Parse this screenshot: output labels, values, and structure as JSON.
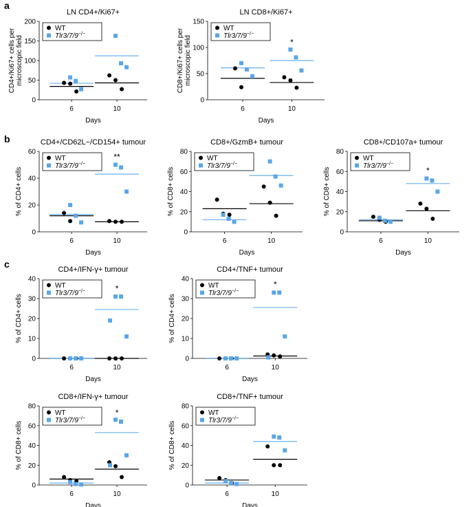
{
  "figure": {
    "panel_labels": [
      "a",
      "b",
      "c"
    ],
    "legend": {
      "wt": "WT",
      "ko": "Tlr3/7/9",
      "ko_sup": "−/−"
    },
    "colors": {
      "wt": "#000000",
      "ko": "#5aa6e8",
      "ko_mean": "#6ab0ef",
      "axis": "#000000"
    }
  },
  "chart_data": [
    {
      "id": "a1",
      "type": "scatter",
      "title": "LN CD4+/Ki67+",
      "ylabel": "CD4+/Ki67+ cells per microscopic field",
      "xlabel": "Days",
      "categories": [
        "6",
        "10"
      ],
      "ylim": [
        0,
        200
      ],
      "yticks": [
        0,
        50,
        100,
        150,
        200
      ],
      "series": [
        {
          "name": "WT",
          "points": [
            [
              0,
              43
            ],
            [
              0,
              41
            ],
            [
              0,
              21
            ],
            [
              1,
              62
            ],
            [
              1,
              50
            ],
            [
              1,
              27
            ]
          ],
          "means": [
            34,
            43
          ]
        },
        {
          "name": "Tlr3/7/9−/−",
          "points": [
            [
              0,
              57
            ],
            [
              0,
              48
            ],
            [
              0,
              27
            ],
            [
              1,
              163
            ],
            [
              1,
              93
            ],
            [
              1,
              83
            ]
          ],
          "means": [
            42,
            112
          ]
        }
      ],
      "annotations": [
        {
          "category": 1,
          "text": "",
          "y": 0
        }
      ]
    },
    {
      "id": "a2",
      "type": "scatter",
      "title": "LN CD8+/Ki67+",
      "ylabel": "CD8+/Ki67+ cells per microscopic field",
      "xlabel": "Days",
      "categories": [
        "6",
        "10"
      ],
      "ylim": [
        0,
        150
      ],
      "yticks": [
        0,
        50,
        100,
        150
      ],
      "series": [
        {
          "name": "WT",
          "points": [
            [
              0,
              60
            ],
            [
              0,
              24
            ],
            [
              1,
              43
            ],
            [
              1,
              37
            ],
            [
              1,
              23
            ]
          ],
          "means": [
            41,
            33
          ]
        },
        {
          "name": "Tlr3/7/9−/−",
          "points": [
            [
              0,
              70
            ],
            [
              0,
              58
            ],
            [
              0,
              45
            ],
            [
              1,
              96
            ],
            [
              1,
              81
            ],
            [
              1,
              56
            ]
          ],
          "means": [
            61,
            75
          ]
        }
      ],
      "annotations": [
        {
          "category": 1,
          "text": "*",
          "y": 110
        }
      ]
    },
    {
      "id": "b1",
      "type": "scatter",
      "title": "CD4+/CD62L−/CD154+ tumour",
      "ylabel": "% of CD4+ cells",
      "xlabel": "Days",
      "categories": [
        "6",
        "10"
      ],
      "ylim": [
        0,
        60
      ],
      "yticks": [
        0,
        20,
        40,
        60
      ],
      "series": [
        {
          "name": "WT",
          "points": [
            [
              0,
              14
            ],
            [
              0,
              8
            ],
            [
              1,
              8
            ],
            [
              1,
              7.5
            ],
            [
              1,
              7.5
            ]
          ],
          "means": [
            12,
            7.5
          ]
        },
        {
          "name": "Tlr3/7/9−/−",
          "points": [
            [
              0,
              20
            ],
            [
              0,
              12
            ],
            [
              0,
              7
            ],
            [
              1,
              50
            ],
            [
              1,
              48
            ],
            [
              1,
              30
            ]
          ],
          "means": [
            13,
            43
          ]
        }
      ],
      "annotations": [
        {
          "category": 1,
          "text": "**",
          "y": 56
        }
      ]
    },
    {
      "id": "b2",
      "type": "scatter",
      "title": "CD8+/GzmB+ tumour",
      "ylabel": "% of CD8+ cells",
      "xlabel": "Days",
      "categories": [
        "6",
        "10"
      ],
      "ylim": [
        0,
        80
      ],
      "yticks": [
        0,
        20,
        40,
        60,
        80
      ],
      "series": [
        {
          "name": "WT",
          "points": [
            [
              0,
              32
            ],
            [
              0,
              18
            ],
            [
              0,
              17
            ],
            [
              1,
              45
            ],
            [
              1,
              29
            ],
            [
              1,
              16
            ]
          ],
          "means": [
            23,
            28
          ]
        },
        {
          "name": "Tlr3/7/9−/−",
          "points": [
            [
              0,
              17
            ],
            [
              0,
              13
            ],
            [
              0,
              10
            ],
            [
              1,
              70
            ],
            [
              1,
              55
            ],
            [
              1,
              46
            ]
          ],
          "means": [
            12,
            56
          ]
        }
      ],
      "annotations": []
    },
    {
      "id": "b3",
      "type": "scatter",
      "title": "CD8+/CD107a+ tumour",
      "ylabel": "% of CD8+ cells",
      "xlabel": "Days",
      "categories": [
        "6",
        "10"
      ],
      "ylim": [
        0,
        80
      ],
      "yticks": [
        0,
        20,
        40,
        60,
        80
      ],
      "series": [
        {
          "name": "WT",
          "points": [
            [
              0,
              15
            ],
            [
              0,
              12
            ],
            [
              0,
              10
            ],
            [
              1,
              28
            ],
            [
              1,
              23
            ],
            [
              1,
              13
            ]
          ],
          "means": [
            11,
            21
          ]
        },
        {
          "name": "Tlr3/7/9−/−",
          "points": [
            [
              0,
              14
            ],
            [
              0,
              11
            ],
            [
              0,
              10
            ],
            [
              1,
              53
            ],
            [
              1,
              51
            ],
            [
              1,
              40
            ]
          ],
          "means": [
            12,
            48
          ]
        }
      ],
      "annotations": [
        {
          "category": 1,
          "text": "*",
          "y": 61
        }
      ]
    },
    {
      "id": "c1",
      "type": "scatter",
      "title": "CD4+/IFN-γ+ tumour",
      "ylabel": "% of CD4+ cells",
      "xlabel": "Days",
      "categories": [
        "6",
        "10"
      ],
      "ylim": [
        0,
        40
      ],
      "yticks": [
        0,
        10,
        20,
        30,
        40
      ],
      "series": [
        {
          "name": "WT",
          "points": [
            [
              0,
              0
            ],
            [
              0,
              0
            ],
            [
              0,
              0
            ],
            [
              1,
              0
            ],
            [
              1,
              0
            ],
            [
              1,
              0
            ]
          ],
          "means": [
            0,
            0
          ]
        },
        {
          "name": "Tlr3/7/9−/−",
          "points": [
            [
              0,
              0
            ],
            [
              0,
              0
            ],
            [
              0,
              0
            ],
            [
              1,
              31
            ],
            [
              1,
              31
            ],
            [
              1,
              11
            ],
            [
              1,
              19
            ]
          ],
          "means": [
            0,
            24.5
          ]
        }
      ],
      "annotations": [
        {
          "category": 1,
          "text": "*",
          "y": 35
        }
      ]
    },
    {
      "id": "c2",
      "type": "scatter",
      "title": "CD4+/TNF+ tumour",
      "ylabel": "% of CD4+ cells",
      "xlabel": "Days",
      "categories": [
        "6",
        "10"
      ],
      "ylim": [
        0,
        40
      ],
      "yticks": [
        0,
        10,
        20,
        30,
        40
      ],
      "series": [
        {
          "name": "WT",
          "points": [
            [
              0,
              0
            ],
            [
              0,
              0
            ],
            [
              0,
              0
            ],
            [
              1,
              2
            ],
            [
              1,
              1.5
            ],
            [
              1,
              1
            ]
          ],
          "means": [
            0,
            1.2
          ]
        },
        {
          "name": "Tlr3/7/9−/−",
          "points": [
            [
              0,
              0
            ],
            [
              0,
              0
            ],
            [
              0,
              0
            ],
            [
              1,
              33
            ],
            [
              1,
              33
            ],
            [
              1,
              11
            ],
            [
              1,
              0.5
            ]
          ],
          "means": [
            0,
            25.5
          ]
        }
      ],
      "annotations": [
        {
          "category": 1,
          "text": "*",
          "y": 37
        }
      ]
    },
    {
      "id": "c3",
      "type": "scatter",
      "title": "CD8+/IFN-γ+ tumour",
      "ylabel": "% of CD8+ cells",
      "xlabel": "Days",
      "categories": [
        "6",
        "10"
      ],
      "ylim": [
        0,
        80
      ],
      "yticks": [
        0,
        20,
        40,
        60,
        80
      ],
      "series": [
        {
          "name": "WT",
          "points": [
            [
              0,
              8
            ],
            [
              0,
              5
            ],
            [
              0,
              4
            ],
            [
              1,
              23
            ],
            [
              1,
              19
            ],
            [
              1,
              8
            ]
          ],
          "means": [
            6,
            16
          ]
        },
        {
          "name": "Tlr3/7/9−/−",
          "points": [
            [
              0,
              3
            ],
            [
              0,
              1
            ],
            [
              0,
              0.5
            ],
            [
              1,
              66
            ],
            [
              1,
              64
            ],
            [
              1,
              30
            ],
            [
              1,
              20
            ]
          ],
          "means": [
            2,
            53
          ]
        }
      ],
      "annotations": [
        {
          "category": 1,
          "text": "*",
          "y": 73
        }
      ]
    },
    {
      "id": "c4",
      "type": "scatter",
      "title": "CD8+/TNF+ tumour",
      "ylabel": "% of CD8+ cells",
      "xlabel": "Days",
      "categories": [
        "6",
        "10"
      ],
      "ylim": [
        0,
        80
      ],
      "yticks": [
        0,
        20,
        40,
        60,
        80
      ],
      "series": [
        {
          "name": "WT",
          "points": [
            [
              0,
              7
            ],
            [
              0,
              5
            ],
            [
              0,
              2
            ],
            [
              1,
              39
            ],
            [
              1,
              20
            ],
            [
              1,
              20
            ]
          ],
          "means": [
            5,
            26
          ]
        },
        {
          "name": "Tlr3/7/9−/−",
          "points": [
            [
              0,
              4
            ],
            [
              0,
              2
            ],
            [
              0,
              1
            ],
            [
              1,
              49
            ],
            [
              1,
              48
            ],
            [
              1,
              35
            ]
          ],
          "means": [
            2,
            44
          ]
        }
      ],
      "annotations": []
    }
  ]
}
